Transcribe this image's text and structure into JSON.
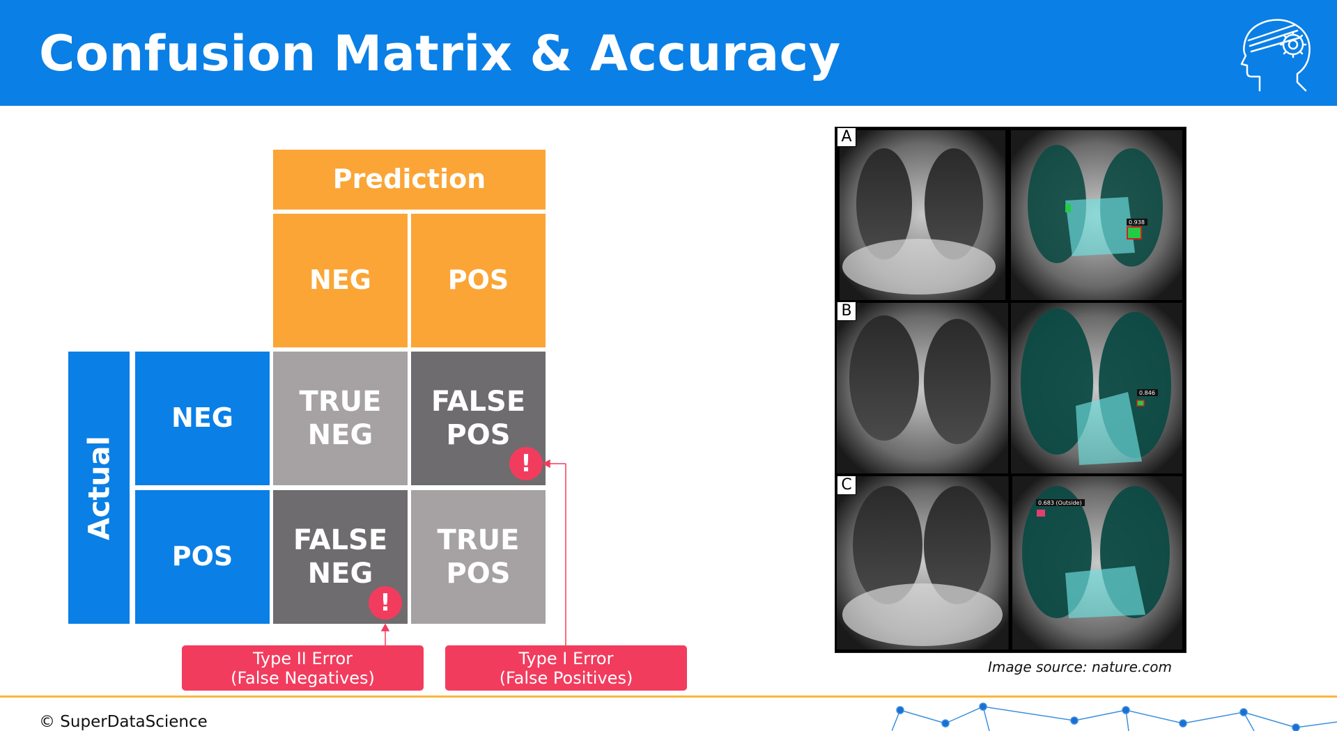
{
  "header": {
    "title": "Confusion Matrix & Accuracy",
    "logo_icon": "brain-head-icon",
    "background": "#0a7fe6"
  },
  "matrix": {
    "prediction_label": "Prediction",
    "actual_label": "Actual",
    "pred_neg": "NEG",
    "pred_pos": "POS",
    "actual_neg": "NEG",
    "actual_pos": "POS",
    "tn": [
      "TRUE",
      "NEG"
    ],
    "fp": [
      "FALSE",
      "POS"
    ],
    "fn": [
      "FALSE",
      "NEG"
    ],
    "tp": [
      "TRUE",
      "POS"
    ],
    "alert_symbol": "!",
    "colors": {
      "orange": "#fba536",
      "blue": "#0a7fe6",
      "light_gray": "#a6a2a3",
      "dark_gray": "#6e6c6e",
      "alert": "#f23c5e"
    }
  },
  "errors": {
    "type2": [
      "Type II Error",
      "(False Negatives)"
    ],
    "type1": [
      "Type I Error",
      "(False Positives)"
    ]
  },
  "xray": {
    "panels": [
      "A",
      "B",
      "C"
    ],
    "scores": [
      "0.938",
      "0.846",
      "0.683 (Outside)"
    ],
    "caption": "Image source: nature.com"
  },
  "footer": {
    "copyright": "© SuperDataScience"
  }
}
